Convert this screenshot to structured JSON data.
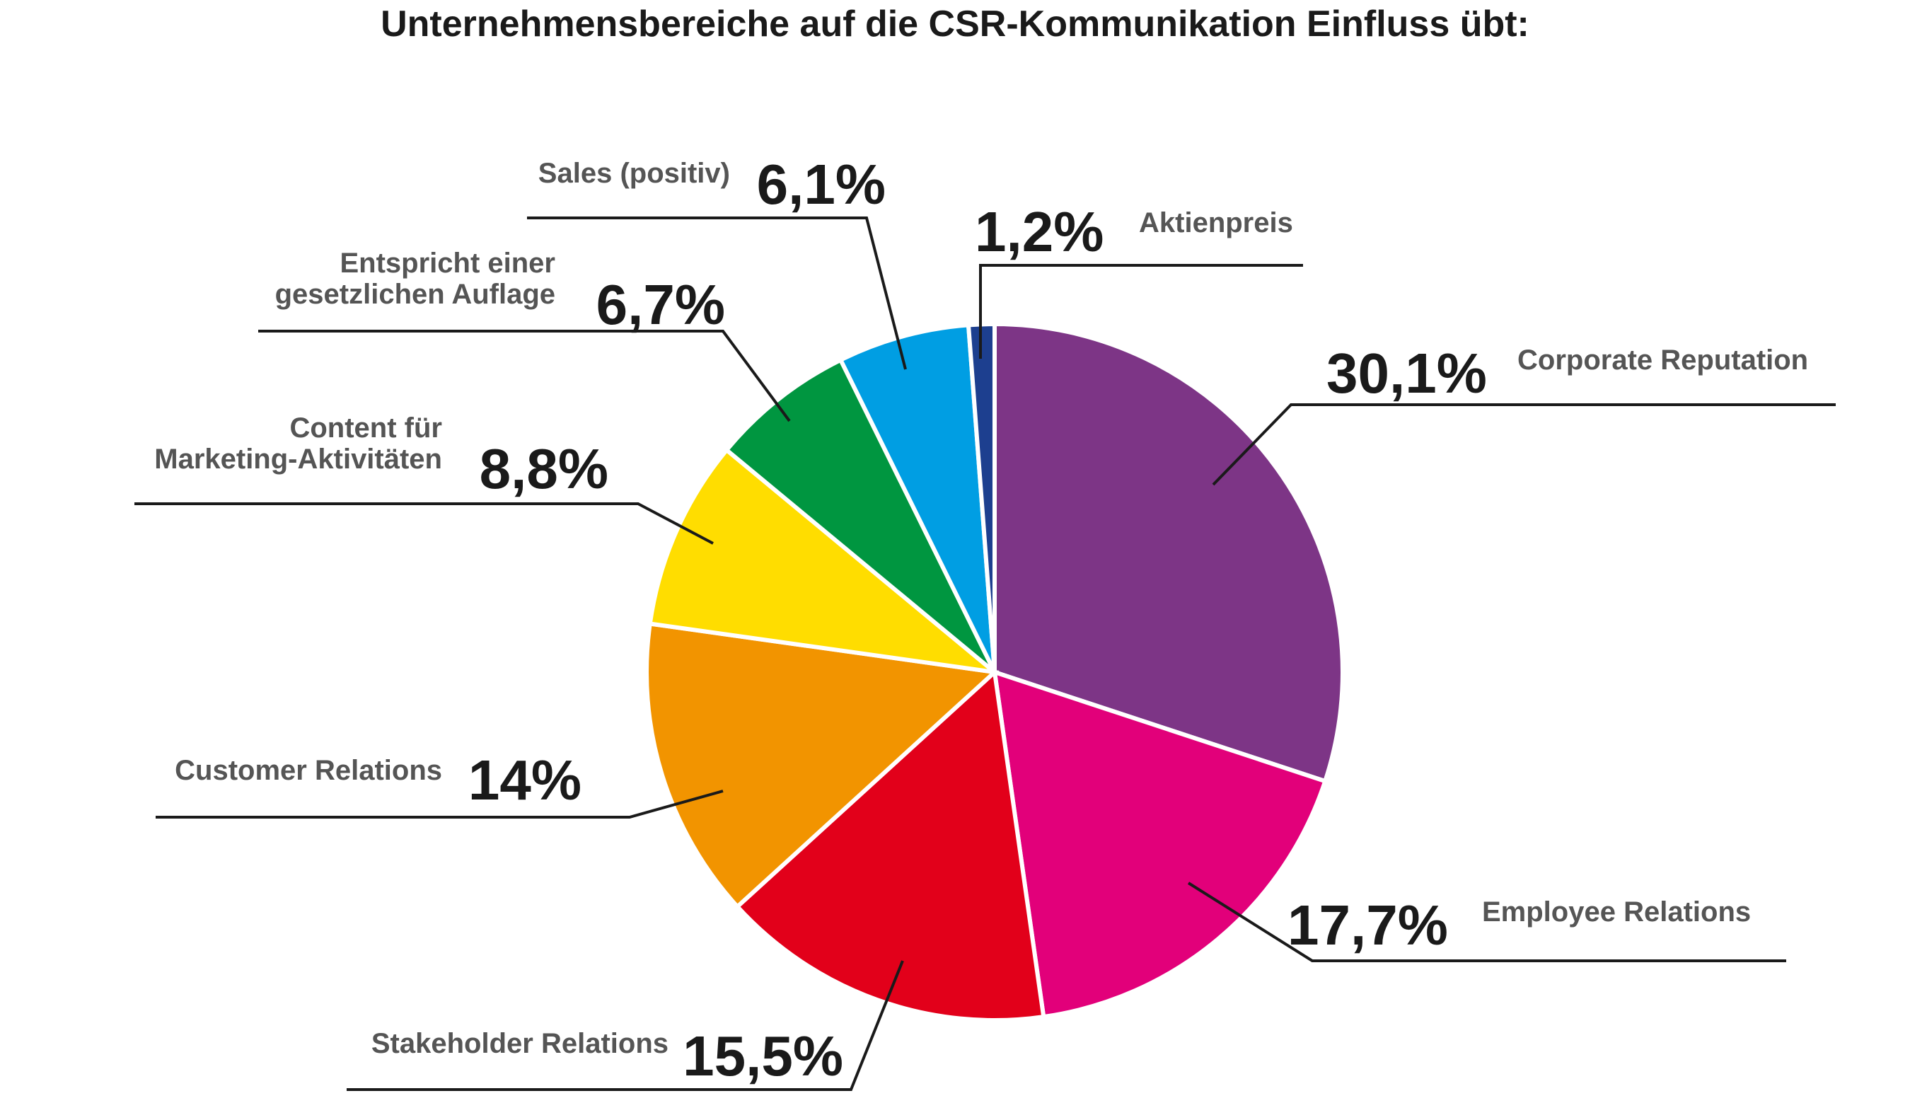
{
  "chart_data": {
    "type": "pie",
    "title": "Unternehmensbereiche auf die CSR-Kommunikation Einfluss übt:",
    "direction": "clockwise",
    "start": "top",
    "slices": [
      {
        "label": [
          "Corporate Reputation"
        ],
        "value": 30.1,
        "display": "30,1%",
        "color": "#7d3586"
      },
      {
        "label": [
          "Employee Relations"
        ],
        "value": 17.7,
        "display": "17,7%",
        "color": "#e2007a"
      },
      {
        "label": [
          "Stakeholder Relations"
        ],
        "value": 15.5,
        "display": "15,5%",
        "color": "#e2001a"
      },
      {
        "label": [
          "Customer Relations"
        ],
        "value": 14,
        "display": "14%",
        "color": "#f29400"
      },
      {
        "label": [
          "Content für",
          "Marketing-Aktivitäten"
        ],
        "value": 8.8,
        "display": "8,8%",
        "color": "#ffdd00"
      },
      {
        "label": [
          "Entspricht einer",
          "gesetzlichen Auflage"
        ],
        "value": 6.7,
        "display": "6,7%",
        "color": "#009640"
      },
      {
        "label": [
          "Sales (positiv)"
        ],
        "value": 6.1,
        "display": "6,1%",
        "color": "#009ee3"
      },
      {
        "label": [
          "Aktienpreis"
        ],
        "value": 1.2,
        "display": "1,2%",
        "color": "#1d3f8f"
      }
    ]
  }
}
